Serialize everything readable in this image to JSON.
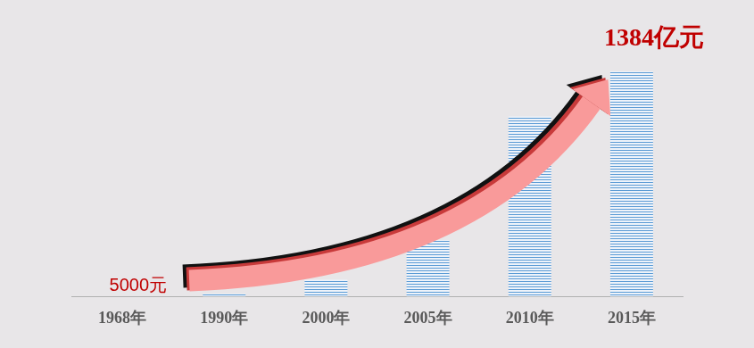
{
  "chart_data": {
    "type": "bar",
    "categories": [
      "1968年",
      "1990年",
      "2000年",
      "2005年",
      "2010年",
      "2015年"
    ],
    "values": [
      5e-05,
      17,
      104,
      346,
      1107,
      1384
    ],
    "color": "#5b9bd5",
    "ylim": [
      0,
      1384
    ],
    "grid": false,
    "tick_labels": "x",
    "annotations": [
      {
        "text": "5000元",
        "x": "1968年"
      },
      {
        "text": "1384亿元",
        "x": "2015年"
      }
    ]
  }
}
